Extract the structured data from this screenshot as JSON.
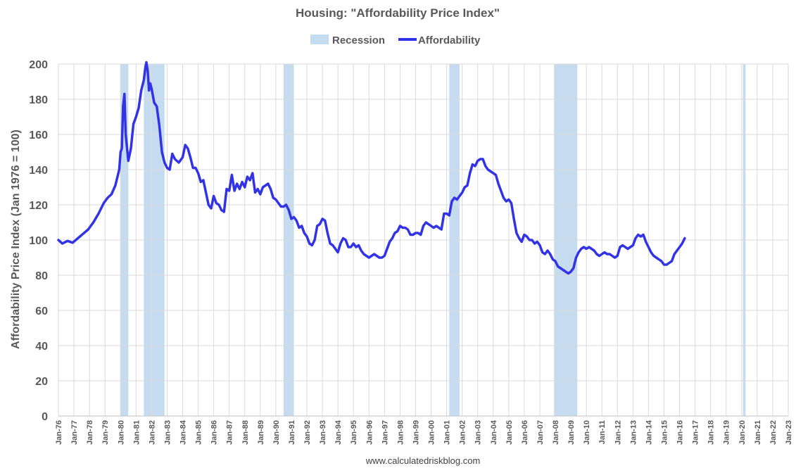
{
  "chart_data": {
    "type": "line",
    "title": "Housing: \"Affordability Price Index\"",
    "ylabel": "Affordability Price Index (Jan 1976 = 100)",
    "ylim": [
      0,
      200
    ],
    "yticks": [
      0,
      20,
      40,
      60,
      80,
      100,
      120,
      140,
      160,
      180,
      200
    ],
    "grid": true,
    "legend_position": "top-center",
    "x_tick_labels": [
      "Jan-76",
      "Jan-77",
      "Jan-78",
      "Jan-79",
      "Jan-80",
      "Jan-81",
      "Jan-82",
      "Jan-83",
      "Jan-84",
      "Jan-85",
      "Jan-86",
      "Jan-87",
      "Jan-88",
      "Jan-89",
      "Jan-90",
      "Jan-91",
      "Jan-92",
      "Jan-93",
      "Jan-94",
      "Jan-95",
      "Jan-96",
      "Jan-97",
      "Jan-98",
      "Jan-99",
      "Jan-00",
      "Jan-01",
      "Jan-02",
      "Jan-03",
      "Jan-04",
      "Jan-05",
      "Jan-06",
      "Jan-07",
      "Jan-08",
      "Jan-09",
      "Jan-10",
      "Jan-11",
      "Jan-12",
      "Jan-13",
      "Jan-14",
      "Jan-15",
      "Jan-16",
      "Jan-17",
      "Jan-18",
      "Jan-19",
      "Jan-20",
      "Jan-21",
      "Jan-22",
      "Jan-23"
    ],
    "x_range": [
      "1976-01",
      "2023-01"
    ],
    "recessions": [
      {
        "start": "1980-01",
        "end": "1980-07"
      },
      {
        "start": "1981-07",
        "end": "1982-11"
      },
      {
        "start": "1990-07",
        "end": "1991-03"
      },
      {
        "start": "2001-03",
        "end": "2001-11"
      },
      {
        "start": "2007-12",
        "end": "2009-06"
      },
      {
        "start": "2020-02",
        "end": "2020-04"
      }
    ],
    "series": [
      {
        "name": "Affordability",
        "color": "#3333e6",
        "points": [
          [
            "1976-01",
            100
          ],
          [
            "1976-04",
            98
          ],
          [
            "1976-08",
            99.5
          ],
          [
            "1976-12",
            98.5
          ],
          [
            "1977-04",
            101
          ],
          [
            "1977-08",
            103.5
          ],
          [
            "1977-12",
            106
          ],
          [
            "1978-04",
            110
          ],
          [
            "1978-08",
            115
          ],
          [
            "1978-12",
            121
          ],
          [
            "1979-03",
            124
          ],
          [
            "1979-06",
            126
          ],
          [
            "1979-09",
            131
          ],
          [
            "1979-12",
            140
          ],
          [
            "1980-01",
            150
          ],
          [
            "1980-02",
            152
          ],
          [
            "1980-03",
            176
          ],
          [
            "1980-04",
            183
          ],
          [
            "1980-05",
            160
          ],
          [
            "1980-07",
            145
          ],
          [
            "1980-09",
            152
          ],
          [
            "1980-11",
            166
          ],
          [
            "1981-01",
            170
          ],
          [
            "1981-03",
            175
          ],
          [
            "1981-05",
            185
          ],
          [
            "1981-07",
            191
          ],
          [
            "1981-08",
            197
          ],
          [
            "1981-09",
            201
          ],
          [
            "1981-10",
            196
          ],
          [
            "1981-11",
            185
          ],
          [
            "1981-12",
            189
          ],
          [
            "1982-01",
            186
          ],
          [
            "1982-03",
            178
          ],
          [
            "1982-05",
            176
          ],
          [
            "1982-07",
            165
          ],
          [
            "1982-09",
            150
          ],
          [
            "1982-11",
            144
          ],
          [
            "1983-01",
            141
          ],
          [
            "1983-03",
            140
          ],
          [
            "1983-05",
            149
          ],
          [
            "1983-07",
            146
          ],
          [
            "1983-10",
            144
          ],
          [
            "1984-01",
            147
          ],
          [
            "1984-03",
            154
          ],
          [
            "1984-05",
            152
          ],
          [
            "1984-07",
            147
          ],
          [
            "1984-09",
            141
          ],
          [
            "1984-11",
            141
          ],
          [
            "1985-01",
            138
          ],
          [
            "1985-03",
            133
          ],
          [
            "1985-05",
            134
          ],
          [
            "1985-07",
            127
          ],
          [
            "1985-09",
            120
          ],
          [
            "1985-11",
            118
          ],
          [
            "1986-01",
            125
          ],
          [
            "1986-03",
            121
          ],
          [
            "1986-05",
            120
          ],
          [
            "1986-07",
            117
          ],
          [
            "1986-09",
            116
          ],
          [
            "1986-11",
            129
          ],
          [
            "1987-01",
            128
          ],
          [
            "1987-03",
            137
          ],
          [
            "1987-05",
            128
          ],
          [
            "1987-07",
            132
          ],
          [
            "1987-09",
            129
          ],
          [
            "1987-11",
            133
          ],
          [
            "1988-01",
            130
          ],
          [
            "1988-03",
            136
          ],
          [
            "1988-05",
            134
          ],
          [
            "1988-07",
            138
          ],
          [
            "1988-09",
            127
          ],
          [
            "1988-11",
            129
          ],
          [
            "1989-01",
            126
          ],
          [
            "1989-03",
            130
          ],
          [
            "1989-05",
            131
          ],
          [
            "1989-07",
            132
          ],
          [
            "1989-09",
            129
          ],
          [
            "1989-11",
            124
          ],
          [
            "1990-01",
            123
          ],
          [
            "1990-03",
            121
          ],
          [
            "1990-05",
            119
          ],
          [
            "1990-07",
            119
          ],
          [
            "1990-09",
            120
          ],
          [
            "1990-11",
            117
          ],
          [
            "1991-01",
            112
          ],
          [
            "1991-03",
            113
          ],
          [
            "1991-05",
            111
          ],
          [
            "1991-07",
            107
          ],
          [
            "1991-09",
            108
          ],
          [
            "1991-11",
            104
          ],
          [
            "1992-01",
            102
          ],
          [
            "1992-03",
            98
          ],
          [
            "1992-05",
            97
          ],
          [
            "1992-07",
            100
          ],
          [
            "1992-09",
            108
          ],
          [
            "1992-11",
            109
          ],
          [
            "1993-01",
            112
          ],
          [
            "1993-03",
            111
          ],
          [
            "1993-05",
            104
          ],
          [
            "1993-07",
            98
          ],
          [
            "1993-09",
            97
          ],
          [
            "1993-11",
            95
          ],
          [
            "1994-01",
            93
          ],
          [
            "1994-03",
            98
          ],
          [
            "1994-05",
            101
          ],
          [
            "1994-07",
            100
          ],
          [
            "1994-09",
            96
          ],
          [
            "1994-11",
            96
          ],
          [
            "1995-01",
            98
          ],
          [
            "1995-03",
            96
          ],
          [
            "1995-05",
            97
          ],
          [
            "1995-07",
            94
          ],
          [
            "1995-09",
            92
          ],
          [
            "1995-11",
            91
          ],
          [
            "1996-01",
            90
          ],
          [
            "1996-03",
            91
          ],
          [
            "1996-05",
            92
          ],
          [
            "1996-07",
            91
          ],
          [
            "1996-09",
            90
          ],
          [
            "1996-11",
            90
          ],
          [
            "1997-01",
            91
          ],
          [
            "1997-03",
            95
          ],
          [
            "1997-05",
            99
          ],
          [
            "1997-07",
            101
          ],
          [
            "1997-09",
            104
          ],
          [
            "1997-11",
            105
          ],
          [
            "1998-01",
            108
          ],
          [
            "1998-03",
            107
          ],
          [
            "1998-05",
            107
          ],
          [
            "1998-07",
            106
          ],
          [
            "1998-09",
            103
          ],
          [
            "1998-11",
            103
          ],
          [
            "1999-01",
            104
          ],
          [
            "1999-03",
            104
          ],
          [
            "1999-05",
            103
          ],
          [
            "1999-07",
            108
          ],
          [
            "1999-09",
            110
          ],
          [
            "1999-11",
            109
          ],
          [
            "2000-01",
            108
          ],
          [
            "2000-03",
            107
          ],
          [
            "2000-05",
            108
          ],
          [
            "2000-07",
            107
          ],
          [
            "2000-09",
            106
          ],
          [
            "2000-11",
            115
          ],
          [
            "2001-01",
            115
          ],
          [
            "2001-03",
            114
          ],
          [
            "2001-05",
            122
          ],
          [
            "2001-07",
            124
          ],
          [
            "2001-09",
            123
          ],
          [
            "2001-11",
            125
          ],
          [
            "2002-01",
            127
          ],
          [
            "2002-03",
            130
          ],
          [
            "2002-05",
            131
          ],
          [
            "2002-07",
            138
          ],
          [
            "2002-09",
            143
          ],
          [
            "2002-11",
            142
          ],
          [
            "2003-01",
            145
          ],
          [
            "2003-03",
            146
          ],
          [
            "2003-05",
            146
          ],
          [
            "2003-07",
            142
          ],
          [
            "2003-09",
            140
          ],
          [
            "2003-11",
            139
          ],
          [
            "2004-01",
            138
          ],
          [
            "2004-03",
            137
          ],
          [
            "2004-05",
            132
          ],
          [
            "2004-07",
            128
          ],
          [
            "2004-09",
            124
          ],
          [
            "2004-11",
            122
          ],
          [
            "2005-01",
            123
          ],
          [
            "2005-03",
            121
          ],
          [
            "2005-05",
            112
          ],
          [
            "2005-07",
            104
          ],
          [
            "2005-09",
            101
          ],
          [
            "2005-11",
            99
          ],
          [
            "2006-01",
            103
          ],
          [
            "2006-03",
            102
          ],
          [
            "2006-05",
            100
          ],
          [
            "2006-07",
            100
          ],
          [
            "2006-09",
            98
          ],
          [
            "2006-11",
            99
          ],
          [
            "2007-01",
            97
          ],
          [
            "2007-03",
            93
          ],
          [
            "2007-05",
            92
          ],
          [
            "2007-07",
            94
          ],
          [
            "2007-09",
            92
          ],
          [
            "2007-11",
            89
          ],
          [
            "2008-01",
            88
          ],
          [
            "2008-03",
            85
          ],
          [
            "2008-05",
            84
          ],
          [
            "2008-07",
            83
          ],
          [
            "2008-09",
            82
          ],
          [
            "2008-11",
            81
          ],
          [
            "2009-01",
            82
          ],
          [
            "2009-03",
            84
          ],
          [
            "2009-05",
            90
          ],
          [
            "2009-07",
            93
          ],
          [
            "2009-09",
            95
          ],
          [
            "2009-11",
            96
          ],
          [
            "2010-01",
            95
          ],
          [
            "2010-03",
            96
          ],
          [
            "2010-05",
            95
          ],
          [
            "2010-07",
            94
          ],
          [
            "2010-09",
            92
          ],
          [
            "2010-11",
            91
          ],
          [
            "2011-01",
            92
          ],
          [
            "2011-03",
            93
          ],
          [
            "2011-05",
            92
          ],
          [
            "2011-07",
            92
          ],
          [
            "2011-09",
            91
          ],
          [
            "2011-11",
            90
          ],
          [
            "2012-01",
            91
          ],
          [
            "2012-03",
            96
          ],
          [
            "2012-05",
            97
          ],
          [
            "2012-07",
            96
          ],
          [
            "2012-09",
            95
          ],
          [
            "2012-11",
            96
          ],
          [
            "2013-01",
            97
          ],
          [
            "2013-03",
            101
          ],
          [
            "2013-05",
            103
          ],
          [
            "2013-07",
            102
          ],
          [
            "2013-09",
            103
          ],
          [
            "2013-11",
            99
          ],
          [
            "2014-01",
            96
          ],
          [
            "2014-03",
            93
          ],
          [
            "2014-05",
            91
          ],
          [
            "2014-07",
            90
          ],
          [
            "2014-09",
            89
          ],
          [
            "2014-11",
            88
          ],
          [
            "2015-01",
            86
          ],
          [
            "2015-03",
            86
          ],
          [
            "2015-05",
            87
          ],
          [
            "2015-07",
            88
          ],
          [
            "2015-09",
            92
          ],
          [
            "2015-11",
            94
          ],
          [
            "2016-01",
            96
          ],
          [
            "2016-03",
            98
          ],
          [
            "2016-05",
            101
          ]
        ]
      },
      {
        "name": "Recession",
        "color": "#c5dcf0"
      }
    ],
    "footer": "www.calculatedriskblog.com"
  }
}
